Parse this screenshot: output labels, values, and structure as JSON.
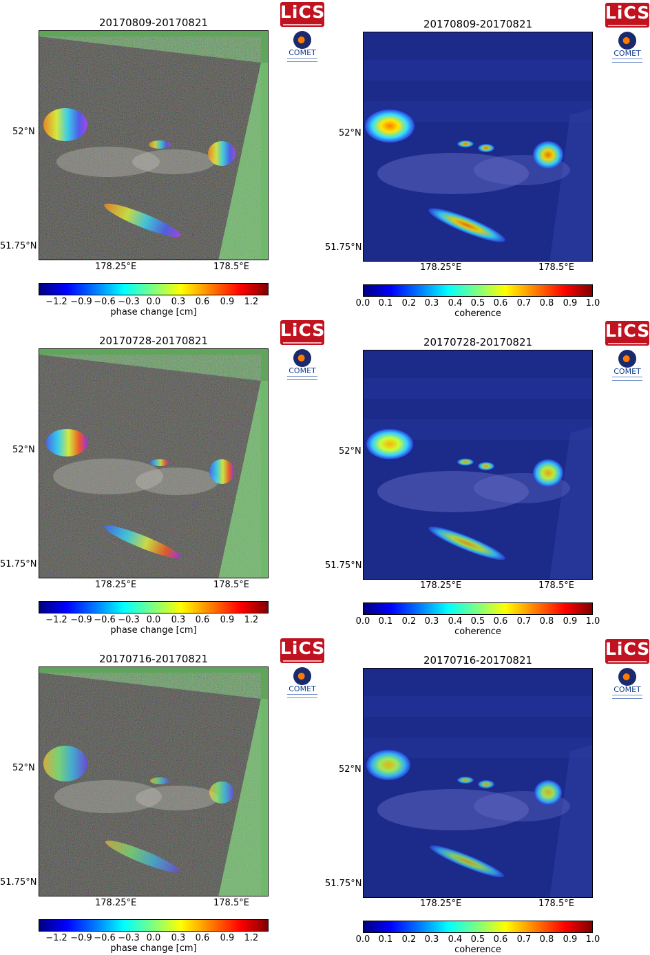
{
  "phase_panels": [
    {
      "title": "20170809-20170821"
    },
    {
      "title": "20170728-20170821"
    },
    {
      "title": "20170716-20170821"
    }
  ],
  "coherence_panels": [
    {
      "title": "20170809-20170821"
    },
    {
      "title": "20170728-20170821"
    },
    {
      "title": "20170716-20170821"
    }
  ],
  "axes": {
    "lat_ticks": [
      "52°N",
      "51.75°N"
    ],
    "lon_ticks": [
      "178.25°E",
      "178.5°E"
    ]
  },
  "phase_colorbar": {
    "label": "phase change [cm]",
    "ticks": [
      "−1.2",
      "−0.9",
      "−0.6",
      "−0.3",
      "0.0",
      "0.3",
      "0.6",
      "0.9",
      "1.2"
    ],
    "range": [
      -1.4,
      1.4
    ]
  },
  "coherence_colorbar": {
    "label": "coherence",
    "ticks": [
      "0.0",
      "0.1",
      "0.2",
      "0.3",
      "0.4",
      "0.5",
      "0.6",
      "0.7",
      "0.8",
      "0.9",
      "1.0"
    ],
    "range": [
      0.0,
      1.0
    ]
  },
  "logos": {
    "lics": "LiCS",
    "comet": "COMET"
  },
  "colors": {
    "land_mask_green": "#5fa65a",
    "coherence_background": "#1c2a8a",
    "noise_dark": "#3b3b34"
  }
}
